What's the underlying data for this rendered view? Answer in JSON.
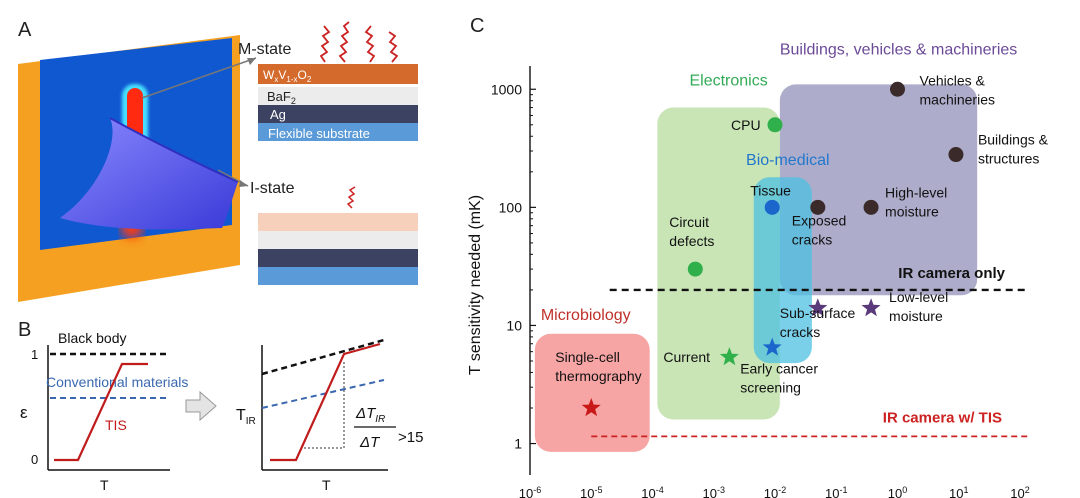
{
  "panel_a": {
    "label": "A",
    "m_state": "M-state",
    "i_state": "I-state",
    "layers": {
      "top_base": "W",
      "top_sub1": "x",
      "top_mid": "V",
      "top_sub2": "1-x",
      "top_end": "O",
      "top_sub3": "2",
      "baf_base": "BaF",
      "baf_sub": "2",
      "ag": "Ag",
      "substrate": "Flexible substrate"
    },
    "colors": {
      "plate": "#f5a020",
      "inner": "#1560d8",
      "cover": "#5a5af0",
      "hot": "#e02010"
    }
  },
  "panel_b": {
    "label": "B",
    "black_body": "Black body",
    "conventional": "Conventional  materials",
    "tis": "TIS",
    "y1_label": "ε",
    "y1_top": "1",
    "y1_bottom": "0",
    "x_label": "T",
    "y2_base": "T",
    "y2_sub": "IR",
    "ratio_num_base": "ΔT",
    "ratio_num_sub": "IR",
    "ratio_den": "ΔT",
    "ratio_value": ">15"
  },
  "chart_data": {
    "type": "scatter",
    "panel_label": "C",
    "ylabel": "T sensitivity needed (mK)",
    "x_scale": "log",
    "y_scale": "log",
    "xlim": [
      1e-06,
      100
    ],
    "ylim": [
      0.8,
      1400
    ],
    "x_ticks": [
      {
        "base": "10",
        "exp": "-6"
      },
      {
        "base": "10",
        "exp": "-5"
      },
      {
        "base": "10",
        "exp": "-4"
      },
      {
        "base": "10",
        "exp": "-3"
      },
      {
        "base": "10",
        "exp": "-2"
      },
      {
        "base": "10",
        "exp": "-1"
      },
      {
        "base": "10",
        "exp": "0"
      },
      {
        "base": "10",
        "exp": "1"
      },
      {
        "base": "10",
        "exp": "2"
      }
    ],
    "x_tick_values": [
      -6,
      -5,
      -4,
      -3,
      -2,
      -1,
      0,
      1,
      2
    ],
    "y_ticks": [
      {
        "label": "1",
        "value": 1
      },
      {
        "label": "10",
        "value": 10
      },
      {
        "label": "100",
        "value": 100
      },
      {
        "label": "1000",
        "value": 1000
      }
    ],
    "categories": [
      {
        "name": "Buildings, vehicles & machineries",
        "color": "#6b4a98",
        "fill": "#6a6aa0",
        "x_range": [
          0.012,
          20
        ],
        "y_range": [
          18,
          1100
        ]
      },
      {
        "name": "Electronics",
        "color": "#33aa55",
        "fill": "#9ccf7a",
        "x_range": [
          0.00012,
          0.012
        ],
        "y_range": [
          1.6,
          700
        ]
      },
      {
        "name": "Bio-medical",
        "color": "#2277cc",
        "fill": "#4cc0e0",
        "x_range": [
          0.0045,
          0.04
        ],
        "y_range": [
          4.8,
          180
        ]
      },
      {
        "name": "Microbiology",
        "color": "#c0302a",
        "fill": "#f05a5a",
        "x_range": [
          1.2e-06,
          9e-05
        ],
        "y_range": [
          0.85,
          8.5
        ]
      }
    ],
    "thresholds": [
      {
        "label": "IR camera only",
        "value": 20,
        "color": "#111111"
      },
      {
        "label": "IR camera w/ TIS",
        "value": 1.15,
        "color": "#cc2222"
      }
    ],
    "points": [
      {
        "label_lines": [
          "Vehicles &",
          "machineries"
        ],
        "x": 1.0,
        "y": 1000,
        "marker": "circle",
        "color": "#3a2a2a"
      },
      {
        "label_lines": [
          "Buildings &",
          "structures"
        ],
        "x": 9.0,
        "y": 280,
        "marker": "circle",
        "color": "#3a2a2a"
      },
      {
        "label_lines": [
          "High-level",
          "moisture"
        ],
        "x": 0.37,
        "y": 100,
        "marker": "circle",
        "color": "#3a2a2a"
      },
      {
        "label_lines": [
          "Exposed",
          "cracks"
        ],
        "x": 0.05,
        "y": 100,
        "marker": "circle",
        "color": "#3a2a2a"
      },
      {
        "label_lines": [
          "CPU"
        ],
        "x": 0.01,
        "y": 500,
        "marker": "circle",
        "color": "#2fb04a"
      },
      {
        "label_lines": [
          "Tissue"
        ],
        "x": 0.009,
        "y": 100,
        "marker": "circle",
        "color": "#1a66cc"
      },
      {
        "label_lines": [
          "Circuit",
          "defects"
        ],
        "x": 0.0005,
        "y": 30,
        "marker": "circle",
        "color": "#2fb04a"
      },
      {
        "label_lines": [
          "Low-level",
          "moisture"
        ],
        "x": 0.37,
        "y": 14,
        "marker": "star",
        "color": "#5a3a7a"
      },
      {
        "label_lines": [
          "Sub-surface",
          "cracks"
        ],
        "x": 0.05,
        "y": 14,
        "marker": "star",
        "color": "#5a3a7a"
      },
      {
        "label_lines": [
          "Current"
        ],
        "x": 0.0018,
        "y": 5.4,
        "marker": "star",
        "color": "#2fb04a"
      },
      {
        "label_lines": [
          "Early cancer",
          "screening"
        ],
        "x": 0.009,
        "y": 6.5,
        "marker": "star",
        "color": "#1a66cc"
      },
      {
        "label_lines": [
          "Single-cell",
          "thermography"
        ],
        "x": 1e-05,
        "y": 2.0,
        "marker": "star",
        "color": "#c81818"
      }
    ]
  }
}
